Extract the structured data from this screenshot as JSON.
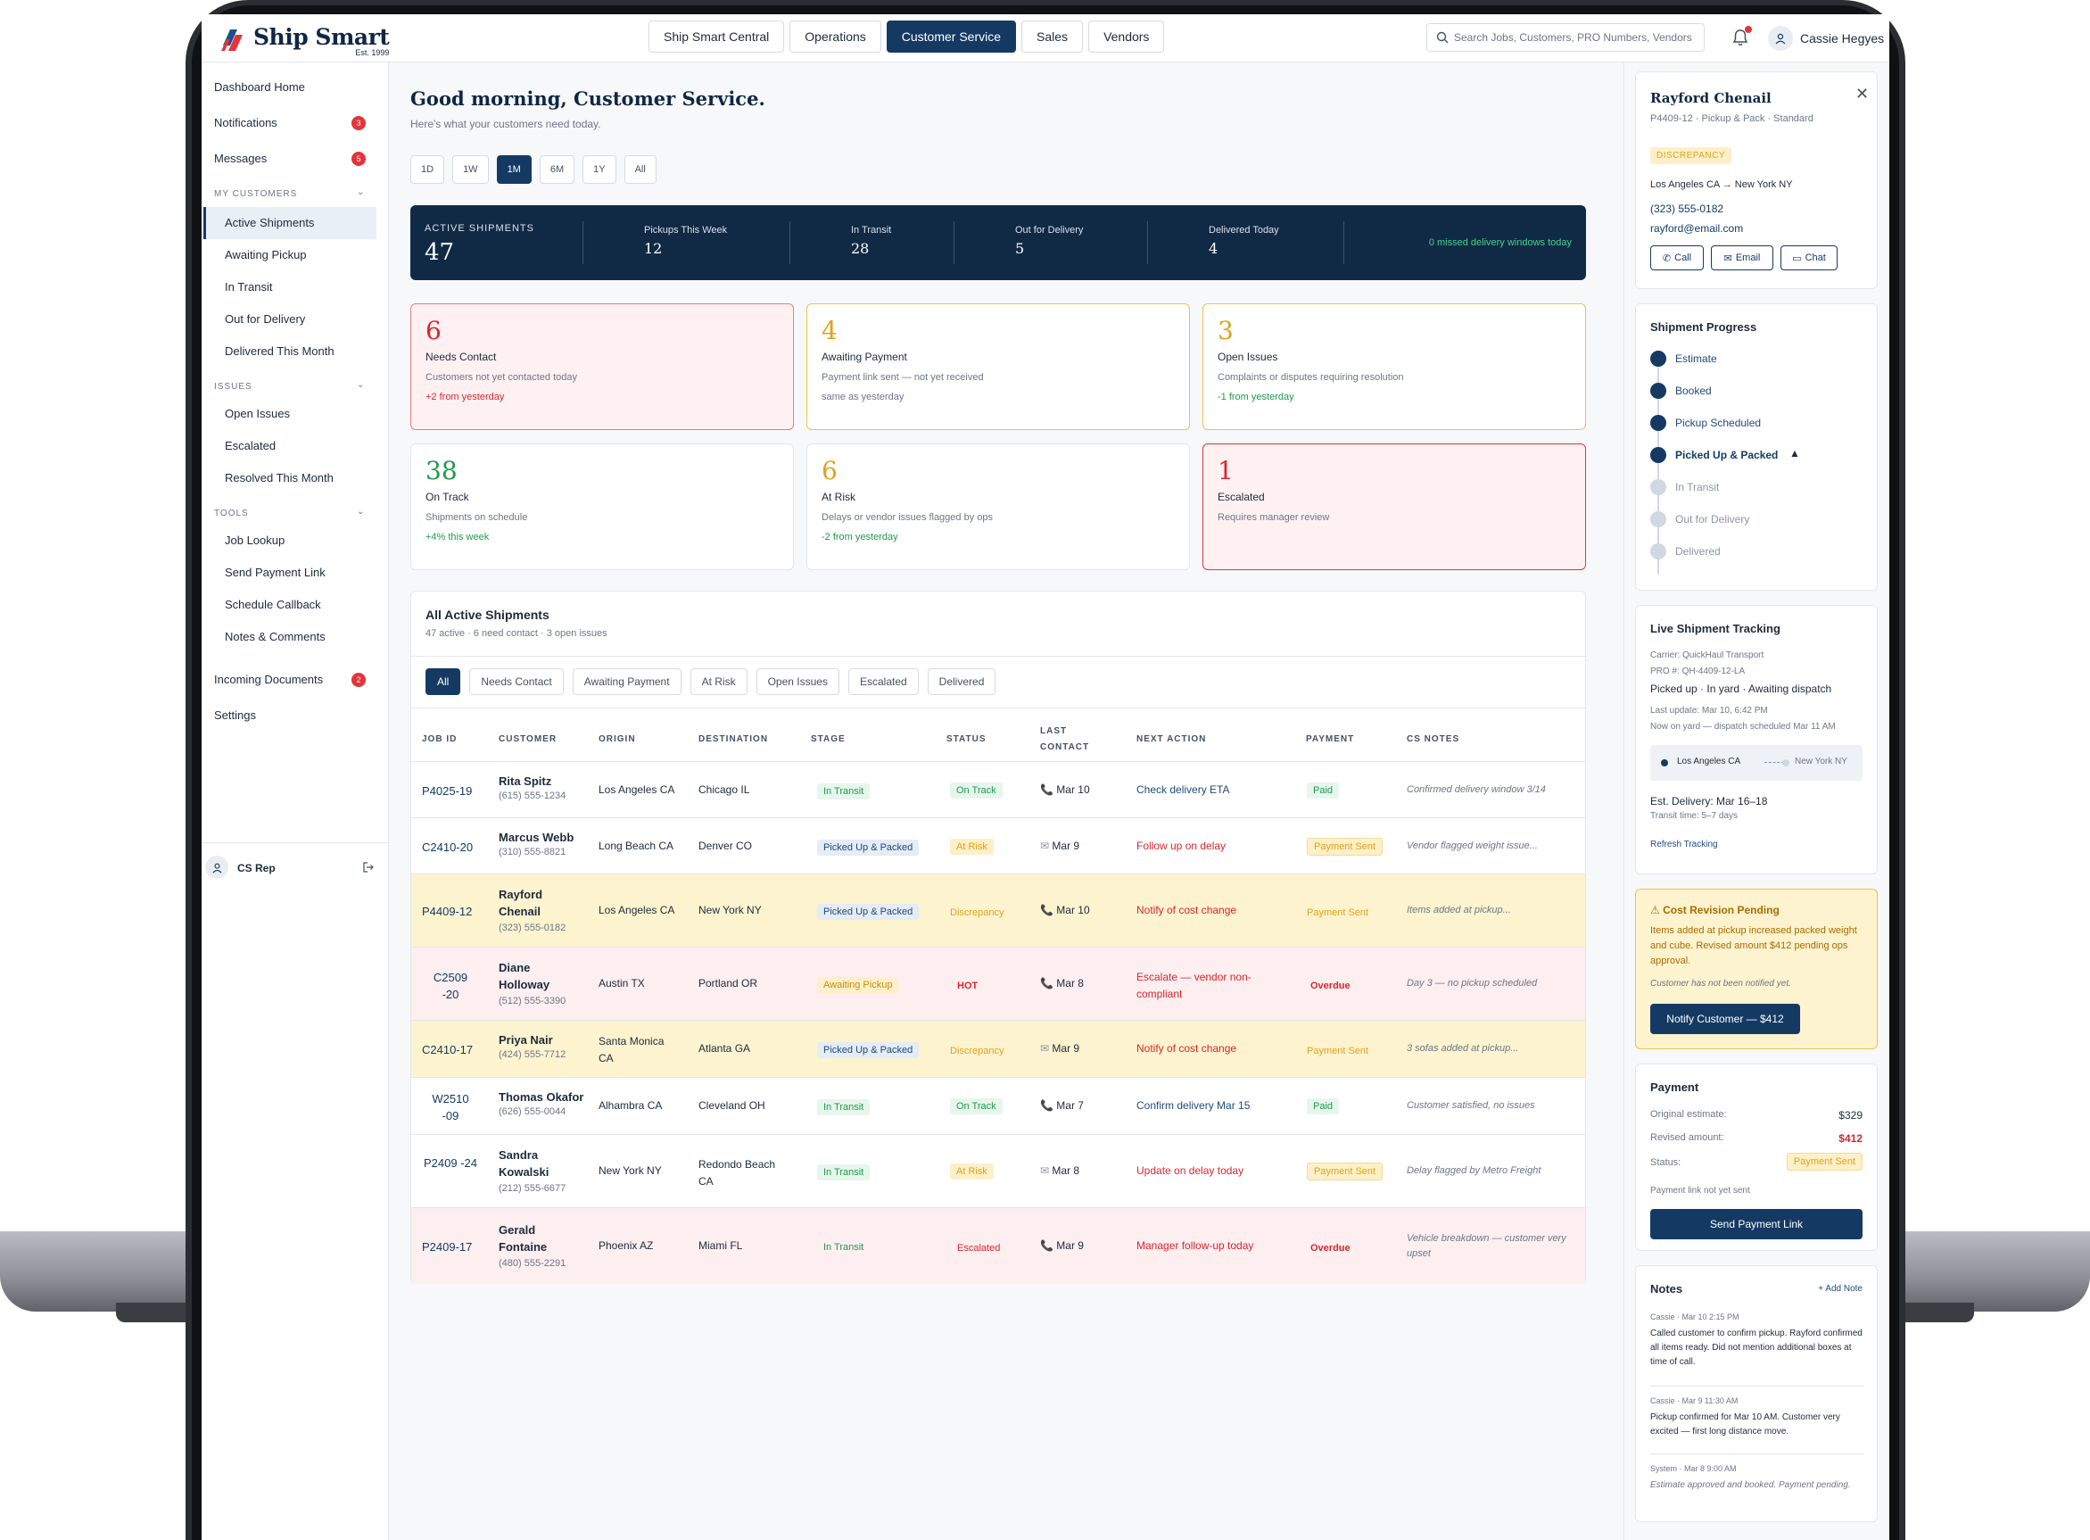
{
  "brand": {
    "name": "Ship Smart",
    "est": "Est. 1999"
  },
  "top_tabs": [
    "Ship Smart Central",
    "Operations",
    "Customer Service",
    "Sales",
    "Vendors"
  ],
  "active_top_tab": "Customer Service",
  "search": {
    "placeholder": "Search Jobs, Customers, PRO Numbers, Vendors"
  },
  "user": {
    "name": "Cassie Hegyes"
  },
  "sidebar": {
    "dashboard": "Dashboard Home",
    "notifications": {
      "label": "Notifications",
      "badge": "3"
    },
    "messages": {
      "label": "Messages",
      "badge": "5"
    },
    "my_customers": {
      "header": "MY CUSTOMERS",
      "items": [
        "Active Shipments",
        "Awaiting Pickup",
        "In Transit",
        "Out for Delivery",
        "Delivered This Month"
      ]
    },
    "issues": {
      "header": "ISSUES",
      "items": [
        "Open Issues",
        "Escalated",
        "Resolved This Month"
      ]
    },
    "tools": {
      "header": "TOOLS",
      "items": [
        "Job Lookup",
        "Send Payment Link",
        "Schedule Callback",
        "Notes & Comments"
      ]
    },
    "incoming_documents": {
      "label": "Incoming Documents",
      "badge": "2"
    },
    "settings": "Settings",
    "footer_user": "CS Rep"
  },
  "greeting": {
    "title": "Good morning, Customer Service.",
    "subtitle": "Here's what your customers need today."
  },
  "ranges": [
    "1D",
    "1W",
    "1M",
    "6M",
    "1Y",
    "All"
  ],
  "active_range": "1M",
  "stats_bar": {
    "active": {
      "label": "ACTIVE SHIPMENTS",
      "value": "47"
    },
    "pickups": {
      "label": "Pickups This Week",
      "value": "12"
    },
    "transit": {
      "label": "In Transit",
      "value": "28"
    },
    "out": {
      "label": "Out for Delivery",
      "value": "5"
    },
    "delivered": {
      "label": "Delivered Today",
      "value": "4"
    },
    "missed": "0 missed delivery windows today"
  },
  "kpis": [
    {
      "num": "6",
      "title": "Needs Contact",
      "desc": "Customers not yet contacted today",
      "delta": "+2 from yesterday",
      "num_color": "#d9262e",
      "delta_color": "#d9262e"
    },
    {
      "num": "4",
      "title": "Awaiting Payment",
      "desc": "Payment link sent — not yet received",
      "delta": "same as yesterday",
      "num_color": "#e0a21a",
      "delta_color": "#6b7785"
    },
    {
      "num": "3",
      "title": "Open Issues",
      "desc": "Complaints or disputes requiring resolution",
      "delta": "-1 from yesterday",
      "num_color": "#e0a21a",
      "delta_color": "#1e9a4c"
    },
    {
      "num": "38",
      "title": "On Track",
      "desc": "Shipments on schedule",
      "delta": "+4% this week",
      "num_color": "#1e9a4c",
      "delta_color": "#1e9a4c"
    },
    {
      "num": "6",
      "title": "At Risk",
      "desc": "Delays or vendor issues flagged by ops",
      "delta": "-2 from yesterday",
      "num_color": "#e0a21a",
      "delta_color": "#1e9a4c"
    },
    {
      "num": "1",
      "title": "Escalated",
      "desc": "Requires manager review",
      "delta": "",
      "num_color": "#d9262e",
      "delta_color": "#6b7785"
    }
  ],
  "table": {
    "title": "All Active Shipments",
    "subtitle": "47 active · 6 need contact · 3 open issues",
    "filters": [
      "All",
      "Needs Contact",
      "Awaiting Payment",
      "At Risk",
      "Open Issues",
      "Escalated",
      "Delivered"
    ],
    "columns": [
      "JOB ID",
      "CUSTOMER",
      "ORIGIN",
      "DESTINATION",
      "STAGE",
      "STATUS",
      "LAST",
      "CONTACT",
      "NEXT ACTION",
      "PAYMENT",
      "CS NOTES"
    ],
    "rows": [
      {
        "job": "P4025-19",
        "name": "Rita Spitz",
        "phone": "(615) 555-1234",
        "origin": "Los Angeles CA",
        "dest": "Chicago IL",
        "stage": "In Transit",
        "status": "On Track",
        "contact": "Mar 10",
        "action": "Check delivery ETA",
        "payment": "Paid",
        "notes": "Confirmed delivery window 3/14"
      },
      {
        "job": "C2410-20",
        "name": "Marcus Webb",
        "phone": "(310) 555-8821",
        "origin": "Long Beach CA",
        "dest": "Denver CO",
        "stage": "Picked Up & Packed",
        "status": "At Risk",
        "contact": "Mar 9",
        "action": "Follow up on delay",
        "payment": "Payment Sent",
        "notes": "Vendor flagged weight issue..."
      },
      {
        "job": "P4409-12",
        "name": "Rayford Chenail",
        "phone": "(323) 555-0182",
        "origin": "Los Angeles CA",
        "dest": "New York NY",
        "stage": "Picked Up & Packed",
        "status": "Discrepancy",
        "contact": "Mar 10",
        "action": "Notify of cost change",
        "payment": "Payment Sent",
        "notes": "Items added at pickup..."
      },
      {
        "job": "C2509 -20",
        "name": "Diane Holloway",
        "phone": "(512) 555-3390",
        "origin": "Austin TX",
        "dest": "Portland OR",
        "stage": "Awaiting Pickup",
        "status": "HOT",
        "contact": "Mar 8",
        "action": "Escalate — vendor non-compliant",
        "payment": "Overdue",
        "notes": "Day 3 — no pickup scheduled"
      },
      {
        "job": "C2410-17",
        "name": "Priya Nair",
        "phone": "(424) 555-7712",
        "origin": "Santa Monica CA",
        "dest": "Atlanta GA",
        "stage": "Picked Up & Packed",
        "status": "Discrepancy",
        "contact": "Mar 9",
        "action": "Notify of cost change",
        "payment": "Payment Sent",
        "notes": "3 sofas added at pickup..."
      },
      {
        "job": "W2510 -09",
        "name": "Thomas Okafor",
        "phone": "(626) 555-0044",
        "origin": "Alhambra CA",
        "dest": "Cleveland OH",
        "stage": "In Transit",
        "status": "On Track",
        "contact": "Mar 7",
        "action": "Confirm delivery Mar 15",
        "payment": "Paid",
        "notes": "Customer satisfied, no issues"
      },
      {
        "job": "P2409 -24",
        "name": "Sandra Kowalski",
        "phone": "(212) 555-6677",
        "origin": "New York NY",
        "dest": "Redondo Beach CA",
        "stage": "In Transit",
        "status": "At Risk",
        "contact": "Mar 8",
        "action": "Update on delay today",
        "payment": "Payment Sent",
        "notes": "Delay flagged by Metro Freight"
      },
      {
        "job": "P2409-17",
        "name": "Gerald Fontaine",
        "phone": "(480) 555-2291",
        "origin": "Phoenix AZ",
        "dest": "Miami FL",
        "stage": "In Transit",
        "status": "Escalated",
        "contact": "Mar 9",
        "action": "Manager follow-up today",
        "payment": "Overdue",
        "notes": "Vehicle breakdown — customer very upset"
      }
    ]
  },
  "detail": {
    "name": "Rayford Chenail",
    "meta": "P4409-12 · Pickup & Pack · Standard",
    "tag": "DISCREPANCY",
    "route": "Los Angeles CA → New York NY",
    "phone": "(323) 555-0182",
    "email": "rayford@email.com",
    "btn_call": "Call",
    "btn_email": "Email",
    "btn_chat": "Chat"
  },
  "progress": {
    "title": "Shipment Progress",
    "steps": [
      "Estimate",
      "Booked",
      "Pickup Scheduled",
      "Picked Up & Packed",
      "In Transit",
      "Out for Delivery",
      "Delivered"
    ]
  },
  "tracking": {
    "title": "Live Shipment Tracking",
    "carrier": "Carrier: QuickHaul Transport",
    "pro": "PRO #: QH-4409-12-LA",
    "status": "Picked up · In yard · Awaiting dispatch",
    "last_update": "Last update: Mar 10, 6:42 PM",
    "yard_note": "Now on yard — dispatch scheduled Mar 11 AM",
    "from": "Los Angeles CA",
    "to": "New York NY",
    "est": "Est. Delivery: Mar 16–18",
    "transit_time": "Transit time: 5–7 days",
    "refresh": "Refresh Tracking"
  },
  "cost_revision": {
    "title": "Cost Revision Pending",
    "body": "Items added at pickup increased packed weight and cube. Revised amount $412 pending ops approval.",
    "note": "Customer has not been notified yet.",
    "button": "Notify Customer — $412"
  },
  "payment": {
    "title": "Payment",
    "original_label": "Original estimate:",
    "original_value": "$329",
    "revised_label": "Revised amount:",
    "revised_value": "$412",
    "status_label": "Status:",
    "status_value": "Payment Sent",
    "note": "Payment link not yet sent",
    "button": "Send Payment Link"
  },
  "notes": {
    "title": "Notes",
    "add": "+ Add Note",
    "items": [
      {
        "meta": "Cassie · Mar 10 2:15 PM",
        "text": "Called customer to confirm pickup. Rayford confirmed all items ready. Did not mention additional boxes at time of call."
      },
      {
        "meta": "Cassie · Mar 9 11:30 AM",
        "text": "Pickup confirmed for Mar 10 AM. Customer very excited — first long distance move."
      },
      {
        "meta": "System · Mar 8 9:00 AM",
        "text": "Estimate approved and booked. Payment pending."
      }
    ]
  }
}
